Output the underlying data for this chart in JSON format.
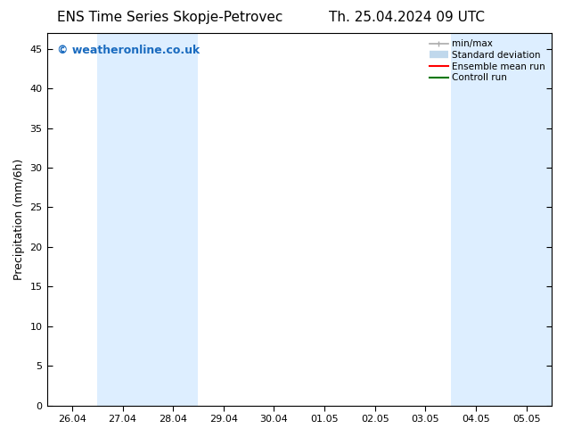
{
  "title_left": "ENS Time Series Skopje-Petrovec",
  "title_right": "Th. 25.04.2024 09 UTC",
  "ylabel": "Precipitation (mm/6h)",
  "background_color": "#ffffff",
  "plot_bg_color": "#ffffff",
  "ylim": [
    0,
    47
  ],
  "yticks": [
    0,
    5,
    10,
    15,
    20,
    25,
    30,
    35,
    40,
    45
  ],
  "xtick_labels": [
    "26.04",
    "27.04",
    "28.04",
    "29.04",
    "30.04",
    "01.05",
    "02.05",
    "03.05",
    "04.05",
    "05.05"
  ],
  "xtick_positions": [
    0,
    1,
    2,
    3,
    4,
    5,
    6,
    7,
    8,
    9
  ],
  "xlim": [
    -0.5,
    9.5
  ],
  "shaded_color": "#ddeeff",
  "shaded_regions": [
    [
      0.5,
      1.5
    ],
    [
      1.5,
      2.5
    ],
    [
      7.5,
      8.5
    ],
    [
      8.5,
      9.5
    ]
  ],
  "watermark": "© weatheronline.co.uk",
  "watermark_color": "#1a6bbf",
  "legend_items": [
    {
      "label": "min/max",
      "color": "#aaaaaa",
      "lw": 1.2
    },
    {
      "label": "Standard deviation",
      "color": "#c0d8ec",
      "lw": 6
    },
    {
      "label": "Ensemble mean run",
      "color": "#ff0000",
      "lw": 1.5
    },
    {
      "label": "Controll run",
      "color": "#007700",
      "lw": 1.5
    }
  ],
  "title_fontsize": 11,
  "axis_fontsize": 8,
  "ylabel_fontsize": 9,
  "watermark_fontsize": 9
}
